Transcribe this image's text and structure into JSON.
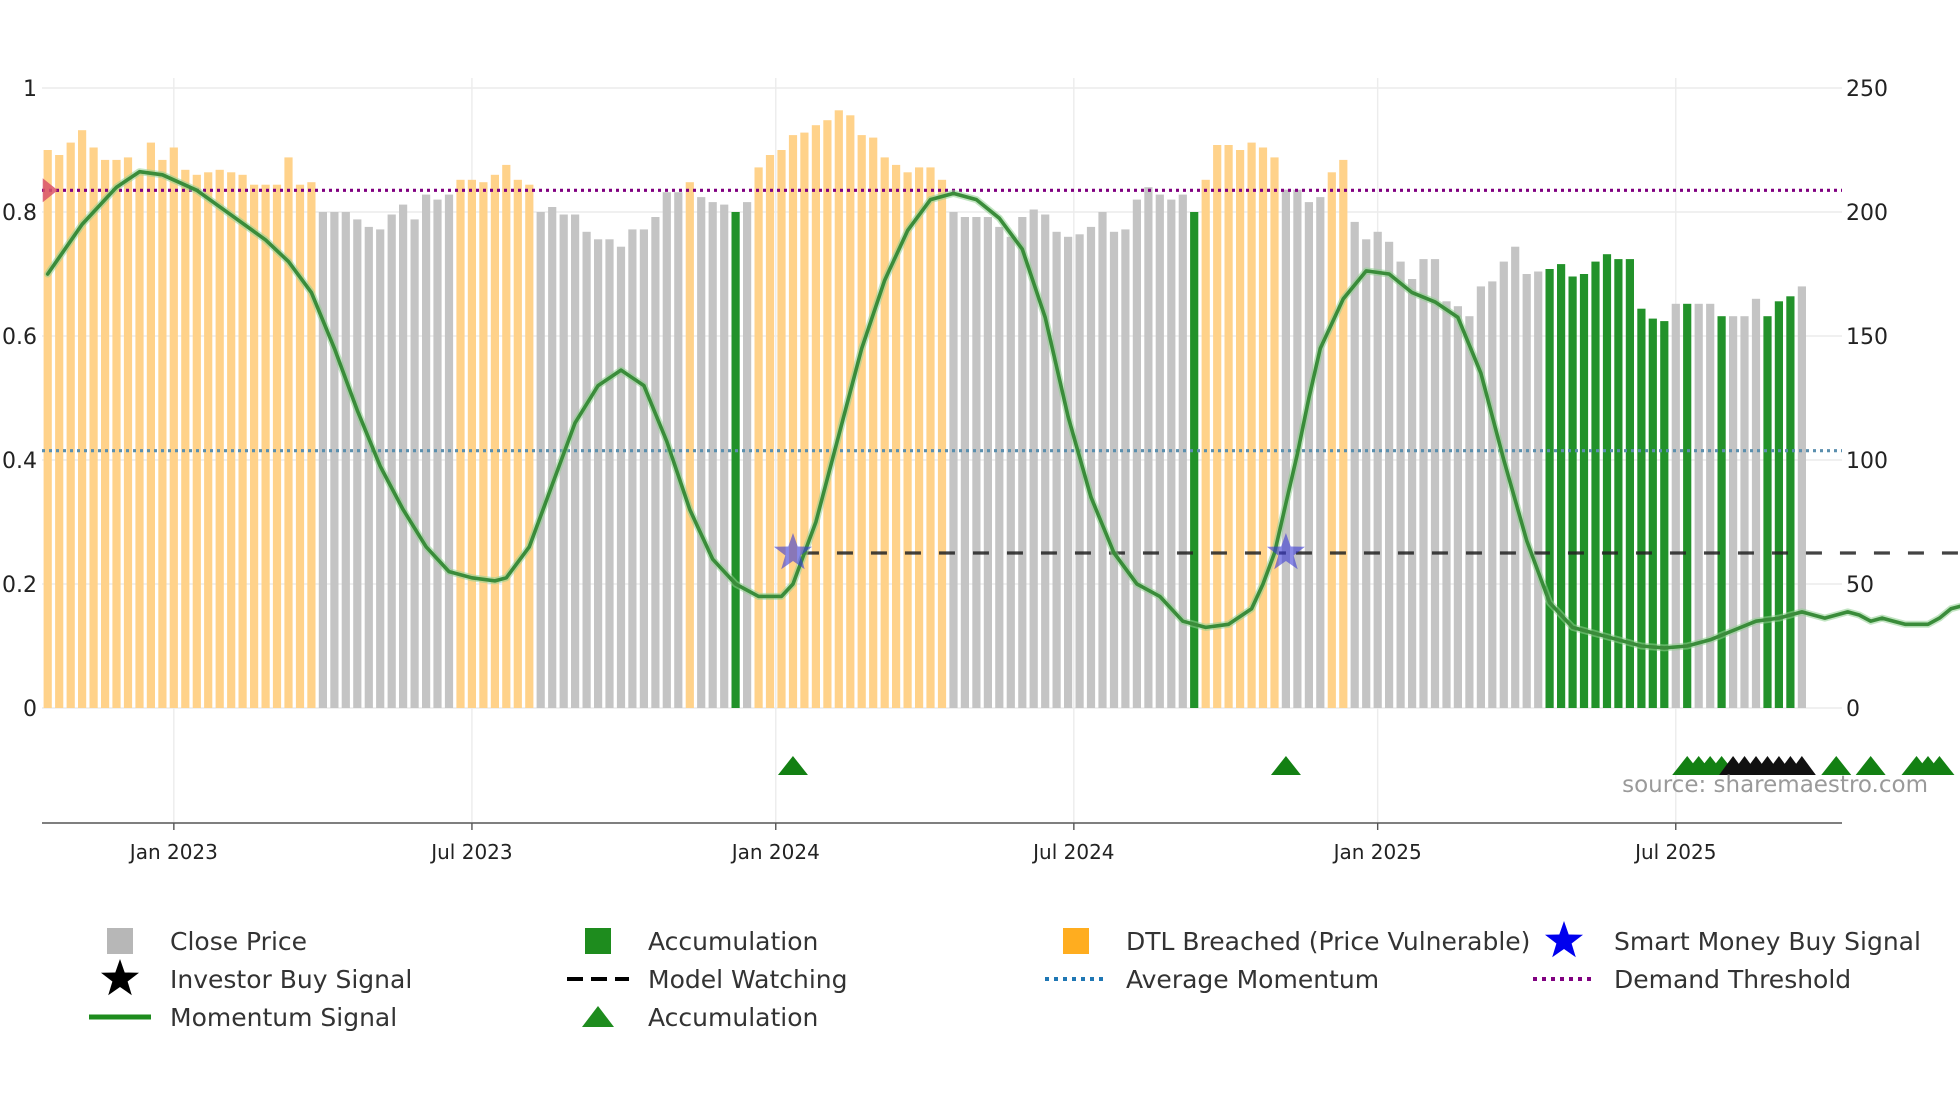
{
  "chart_data": {
    "type": "bar",
    "title": "",
    "xlabel": "",
    "ylabel_left": "",
    "ylabel_right": "",
    "left_axis": {
      "range": [
        0,
        1
      ],
      "ticks": [
        0,
        0.2,
        0.4,
        0.6,
        0.8,
        1
      ],
      "tick_labels": [
        "0",
        "0.2",
        "0.4",
        "0.6",
        "0.8",
        "1"
      ]
    },
    "right_axis": {
      "range": [
        0,
        250
      ],
      "ticks": [
        0,
        50,
        100,
        150,
        200,
        250
      ],
      "tick_labels": [
        "0",
        "50",
        "100",
        "150",
        "200",
        "250"
      ]
    },
    "x_ticks": [
      {
        "label": "Jan 2023",
        "week": 11
      },
      {
        "label": "Jul 2023",
        "week": 37
      },
      {
        "label": "Jan 2024",
        "week": 63.5
      },
      {
        "label": "Jul 2024",
        "week": 89.5
      },
      {
        "label": "Jan 2025",
        "week": 116
      },
      {
        "label": "Jul 2025",
        "week": 142
      }
    ],
    "weeks": 157,
    "close_price_segments": [
      {
        "state": "breached",
        "values": [
          225,
          223,
          228,
          233,
          226,
          221,
          221,
          222,
          216,
          228,
          221,
          226,
          217,
          215,
          216,
          217,
          216,
          215,
          211,
          211,
          211,
          222,
          211,
          212
        ]
      },
      {
        "state": "neutral",
        "values": [
          200,
          200,
          200,
          197,
          194,
          193,
          199,
          203,
          197,
          207,
          205,
          207
        ]
      },
      {
        "state": "breached",
        "values": [
          213,
          213,
          212,
          215,
          219,
          213,
          211
        ]
      },
      {
        "state": "neutral",
        "values": [
          200,
          202,
          199,
          199,
          192,
          189,
          189,
          186,
          193,
          193,
          198,
          208,
          208
        ]
      },
      {
        "state": "breached",
        "values": [
          212
        ]
      },
      {
        "state": "neutral",
        "values": [
          206,
          204,
          203
        ]
      },
      {
        "state": "accumulation",
        "values": [
          200
        ]
      },
      {
        "state": "neutral",
        "values": [
          204
        ]
      },
      {
        "state": "breached",
        "values": [
          218,
          223,
          225,
          231,
          232,
          235,
          237,
          241,
          239,
          231,
          230,
          222,
          219,
          216,
          218,
          218,
          213
        ]
      },
      {
        "state": "neutral",
        "values": [
          200,
          198,
          198,
          198,
          194,
          190,
          198,
          201,
          199,
          192,
          190,
          191,
          194,
          200,
          192,
          193,
          205,
          210,
          207,
          205,
          207
        ]
      },
      {
        "state": "accumulation",
        "values": [
          200
        ]
      },
      {
        "state": "breached",
        "values": [
          213,
          227,
          227,
          225,
          228,
          226,
          222
        ]
      },
      {
        "state": "neutral",
        "values": [
          209,
          209,
          204,
          206
        ]
      },
      {
        "state": "breached",
        "values": [
          216,
          221
        ]
      },
      {
        "state": "neutral",
        "values": [
          196,
          189,
          192,
          188,
          180,
          173,
          181,
          181,
          164,
          162,
          158,
          170,
          172,
          180,
          186,
          175,
          176
        ]
      },
      {
        "state": "accumulation",
        "values": [
          177,
          179,
          174,
          175,
          180,
          183,
          181,
          181,
          161,
          157,
          156
        ]
      },
      {
        "state": "neutral",
        "values": [
          163
        ]
      },
      {
        "state": "accumulation",
        "values": [
          163
        ]
      },
      {
        "state": "neutral",
        "values": [
          163,
          163
        ]
      },
      {
        "state": "accumulation",
        "values": [
          158
        ]
      },
      {
        "state": "neutral",
        "values": [
          158,
          158,
          165
        ]
      },
      {
        "state": "accumulation",
        "values": [
          158,
          164,
          166
        ]
      },
      {
        "state": "neutral",
        "values": [
          170
        ]
      }
    ],
    "momentum_signal": [
      [
        0,
        0.7
      ],
      [
        3,
        0.78
      ],
      [
        6,
        0.84
      ],
      [
        8,
        0.865
      ],
      [
        10,
        0.86
      ],
      [
        13,
        0.835
      ],
      [
        16,
        0.795
      ],
      [
        19,
        0.755
      ],
      [
        21,
        0.72
      ],
      [
        23,
        0.67
      ],
      [
        25,
        0.58
      ],
      [
        27,
        0.48
      ],
      [
        29,
        0.39
      ],
      [
        31,
        0.32
      ],
      [
        33,
        0.26
      ],
      [
        35,
        0.22
      ],
      [
        37,
        0.21
      ],
      [
        39,
        0.205
      ],
      [
        40,
        0.21
      ],
      [
        42,
        0.26
      ],
      [
        44,
        0.36
      ],
      [
        46,
        0.46
      ],
      [
        48,
        0.52
      ],
      [
        50,
        0.545
      ],
      [
        52,
        0.52
      ],
      [
        54,
        0.43
      ],
      [
        56,
        0.32
      ],
      [
        58,
        0.24
      ],
      [
        60,
        0.2
      ],
      [
        62,
        0.18
      ],
      [
        64,
        0.18
      ],
      [
        65,
        0.2
      ],
      [
        66,
        0.25
      ],
      [
        67,
        0.3
      ],
      [
        69,
        0.44
      ],
      [
        71,
        0.58
      ],
      [
        73,
        0.69
      ],
      [
        75,
        0.77
      ],
      [
        77,
        0.82
      ],
      [
        79,
        0.83
      ],
      [
        81,
        0.82
      ],
      [
        83,
        0.79
      ],
      [
        85,
        0.74
      ],
      [
        87,
        0.63
      ],
      [
        89,
        0.47
      ],
      [
        91,
        0.34
      ],
      [
        93,
        0.25
      ],
      [
        95,
        0.2
      ],
      [
        97,
        0.18
      ],
      [
        99,
        0.14
      ],
      [
        101,
        0.13
      ],
      [
        103,
        0.135
      ],
      [
        105,
        0.16
      ],
      [
        106,
        0.2
      ],
      [
        107,
        0.25
      ],
      [
        108,
        0.33
      ],
      [
        109,
        0.41
      ],
      [
        110,
        0.5
      ],
      [
        111,
        0.58
      ],
      [
        113,
        0.66
      ],
      [
        115,
        0.705
      ],
      [
        117,
        0.7
      ],
      [
        119,
        0.67
      ],
      [
        121,
        0.655
      ],
      [
        123,
        0.63
      ],
      [
        125,
        0.54
      ],
      [
        127,
        0.4
      ],
      [
        129,
        0.27
      ],
      [
        131,
        0.17
      ],
      [
        133,
        0.13
      ],
      [
        135,
        0.12
      ],
      [
        137,
        0.11
      ],
      [
        139,
        0.1
      ],
      [
        141,
        0.097
      ],
      [
        143,
        0.1
      ],
      [
        145,
        0.11
      ],
      [
        147,
        0.125
      ],
      [
        149,
        0.14
      ],
      [
        151,
        0.145
      ],
      [
        152,
        0.15
      ],
      [
        153,
        0.155
      ],
      [
        154,
        0.15
      ],
      [
        155,
        0.145
      ],
      [
        156,
        0.15
      ],
      [
        157,
        0.155
      ],
      [
        158,
        0.15
      ],
      [
        159,
        0.14
      ],
      [
        160,
        0.145
      ],
      [
        161,
        0.14
      ],
      [
        162,
        0.135
      ],
      [
        164,
        0.135
      ],
      [
        165,
        0.145
      ],
      [
        166,
        0.16
      ],
      [
        167,
        0.165
      ],
      [
        168,
        0.16
      ]
    ],
    "average_momentum": 0.415,
    "demand_threshold": 0.835,
    "model_watching_level": 0.25,
    "model_watching_ranges": [
      [
        65,
        108
      ],
      [
        108,
        168
      ]
    ],
    "smart_money_buy_signals": [
      {
        "week": 65,
        "value": 0.25
      },
      {
        "week": 108,
        "value": 0.25
      }
    ],
    "accumulation_markers": [
      65,
      108,
      143,
      144,
      145,
      146,
      156,
      159,
      163,
      164,
      165
    ],
    "investor_buy_markers": [
      147,
      148,
      149,
      150,
      151,
      152,
      153
    ],
    "legend": [
      {
        "label": "Close Price",
        "swatch": "square",
        "color": "#b7b7b7"
      },
      {
        "label": "Accumulation",
        "swatch": "square",
        "color": "#1e8c1e"
      },
      {
        "label": "DTL Breached (Price Vulnerable)",
        "swatch": "square",
        "color": "#ffad1f"
      },
      {
        "label": "Smart Money Buy Signal",
        "swatch": "star",
        "color": "#0000ee"
      },
      {
        "label": "Investor Buy Signal",
        "swatch": "star",
        "color": "#000000"
      },
      {
        "label": "Model Watching",
        "swatch": "dash",
        "color": "#000000"
      },
      {
        "label": "Average Momentum",
        "swatch": "dot",
        "color": "#1f77b4"
      },
      {
        "label": "Demand Threshold",
        "swatch": "dot",
        "color": "#800080"
      },
      {
        "label": "Momentum Signal",
        "swatch": "line",
        "color": "#1e8c1e"
      },
      {
        "label": "Accumulation",
        "swatch": "triangle",
        "color": "#1e8c1e"
      }
    ],
    "colors": {
      "neutral": "#c4c4c4",
      "accumulation": "#22922a",
      "breached": "#ffd28a",
      "momentum": "#3a8c3a",
      "average": "#5a8fae",
      "threshold": "#800080",
      "watching": "#222222",
      "smart_money": "#3b3bd6",
      "triangle": "#138013",
      "investor": "#111111",
      "marker_red": "#d9546a"
    },
    "source": "source: sharemaestro.com"
  }
}
